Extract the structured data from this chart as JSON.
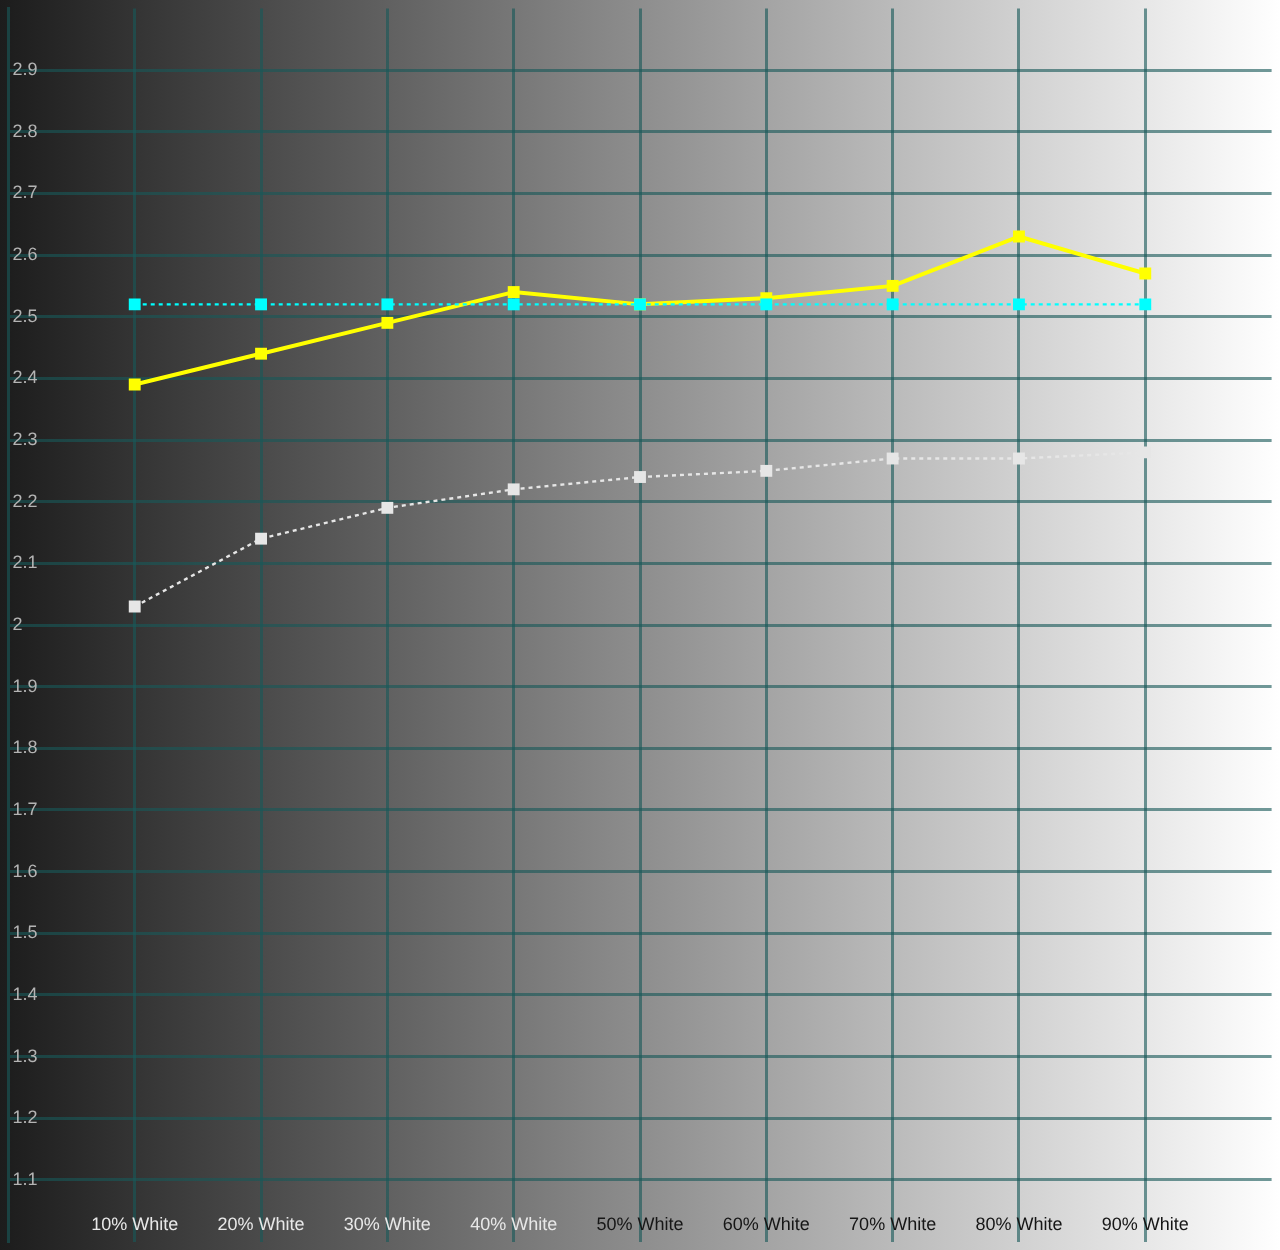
{
  "chart_data": {
    "type": "line",
    "x": [
      10,
      20,
      30,
      40,
      50,
      60,
      70,
      80,
      90
    ],
    "xlim": [
      0,
      100
    ],
    "xticks": [
      {
        "value": 10,
        "label": "10% White"
      },
      {
        "value": 20,
        "label": "20% White"
      },
      {
        "value": 30,
        "label": "30% White"
      },
      {
        "value": 40,
        "label": "40% White"
      },
      {
        "value": 50,
        "label": "50% White"
      },
      {
        "value": 60,
        "label": "60% White"
      },
      {
        "value": 70,
        "label": "70% White"
      },
      {
        "value": 80,
        "label": "80% White"
      },
      {
        "value": 90,
        "label": "90% White"
      }
    ],
    "ylim": [
      1,
      3
    ],
    "yticks": [
      1.1,
      1.2,
      1.3,
      1.4,
      1.5,
      1.6,
      1.7,
      1.8,
      1.9,
      2,
      2.1,
      2.2,
      2.3,
      2.4,
      2.5,
      2.6,
      2.7,
      2.8,
      2.9
    ],
    "grid": true,
    "marker": "square",
    "series": [
      {
        "color": "#ffff00",
        "line_style": "solid",
        "values": [
          2.39,
          2.44,
          2.49,
          2.54,
          2.52,
          2.53,
          2.55,
          2.63,
          2.57
        ]
      },
      {
        "color": "#00ffff",
        "line_style": "dotted",
        "values": [
          2.52,
          2.52,
          2.52,
          2.52,
          2.52,
          2.52,
          2.52,
          2.52,
          2.52
        ]
      },
      {
        "color": "#e6e6e6",
        "line_style": "dotted",
        "values": [
          2.03,
          2.14,
          2.19,
          2.22,
          2.24,
          2.25,
          2.27,
          2.27,
          2.28
        ]
      }
    ]
  }
}
